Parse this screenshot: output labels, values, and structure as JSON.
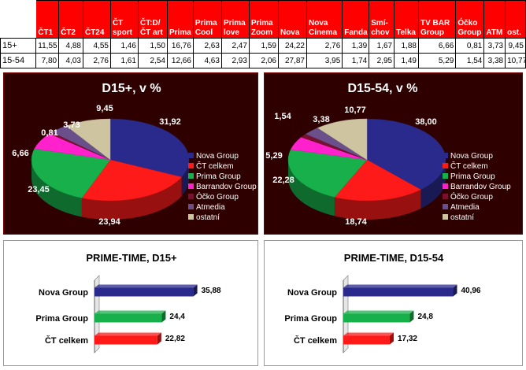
{
  "table": {
    "headers": [
      "",
      "ČT1",
      "ČT2",
      "ČT24",
      "ČT sport",
      "ČT:D/ ČT art",
      "Prima",
      "Prima Cool",
      "Prima love",
      "Prima Zoom",
      "Nova",
      "Nova Cinema",
      "Fanda",
      "Smí-chov",
      "Telka",
      "TV BAR Group",
      "Óčko Group",
      "ATM",
      "ost."
    ],
    "rows": [
      {
        "label": "15+",
        "values": [
          "11,55",
          "4,88",
          "4,55",
          "1,46",
          "1,50",
          "16,76",
          "2,63",
          "2,47",
          "1,59",
          "24,22",
          "2,76",
          "1,39",
          "1,67",
          "1,88",
          "6,66",
          "0,81",
          "3,73",
          "9,45"
        ]
      },
      {
        "label": "15-54",
        "values": [
          "7,80",
          "4,03",
          "2,76",
          "1,61",
          "2,54",
          "12,66",
          "4,63",
          "2,93",
          "2,06",
          "27,87",
          "3,95",
          "1,74",
          "2,95",
          "1,49",
          "5,29",
          "1,54",
          "3,38",
          "10,77"
        ]
      }
    ]
  },
  "chart_data": [
    {
      "type": "pie",
      "title": "D15+, v %",
      "labels": [
        "Nova Group",
        "ČT celkem",
        "Prima Group",
        "Barrandov Group",
        "Óčko Group",
        "Atmedia",
        "ostatní"
      ],
      "values": [
        31.92,
        23.94,
        23.45,
        6.66,
        0.81,
        3.73,
        9.45
      ],
      "value_labels": [
        "31,92",
        "23,94",
        "23,45",
        "6,66",
        "0,81",
        "3,73",
        "9,45"
      ],
      "colors": [
        "#2a2a8c",
        "#ff1a1a",
        "#18b04b",
        "#ff22cc",
        "#7a1030",
        "#6a4f8a",
        "#cfc4a0"
      ],
      "legend_position": "right"
    },
    {
      "type": "pie",
      "title": "D15-54, v %",
      "labels": [
        "Nova Group",
        "ČT celkem",
        "Prima Group",
        "Barrandov Group",
        "Óčko Group",
        "Atmedia",
        "ostatní"
      ],
      "values": [
        38.0,
        18.74,
        22.28,
        5.29,
        1.54,
        3.38,
        10.77
      ],
      "value_labels": [
        "38,00",
        "18,74",
        "22,28",
        "5,29",
        "1,54",
        "3,38",
        "10,77"
      ],
      "colors": [
        "#2a2a8c",
        "#ff1a1a",
        "#18b04b",
        "#ff22cc",
        "#7a1030",
        "#6a4f8a",
        "#cfc4a0"
      ],
      "legend_position": "right"
    },
    {
      "type": "bar",
      "orientation": "horizontal",
      "title": "PRIME-TIME, D15+",
      "categories": [
        "Nova Group",
        "Prima Group",
        "ČT celkem"
      ],
      "values": [
        35.88,
        24.4,
        22.82
      ],
      "value_labels": [
        "35,88",
        "24,4",
        "22,82"
      ],
      "colors": [
        "#2a2a8c",
        "#18b04b",
        "#ff1a1a"
      ],
      "xlim": [
        0,
        40
      ]
    },
    {
      "type": "bar",
      "orientation": "horizontal",
      "title": "PRIME-TIME, D15-54",
      "categories": [
        "Nova Group",
        "Prima Group",
        "ČT celkem"
      ],
      "values": [
        40.96,
        24.8,
        17.32
      ],
      "value_labels": [
        "40,96",
        "24,8",
        "17,32"
      ],
      "colors": [
        "#2a2a8c",
        "#18b04b",
        "#ff1a1a"
      ],
      "xlim": [
        0,
        42
      ]
    }
  ]
}
